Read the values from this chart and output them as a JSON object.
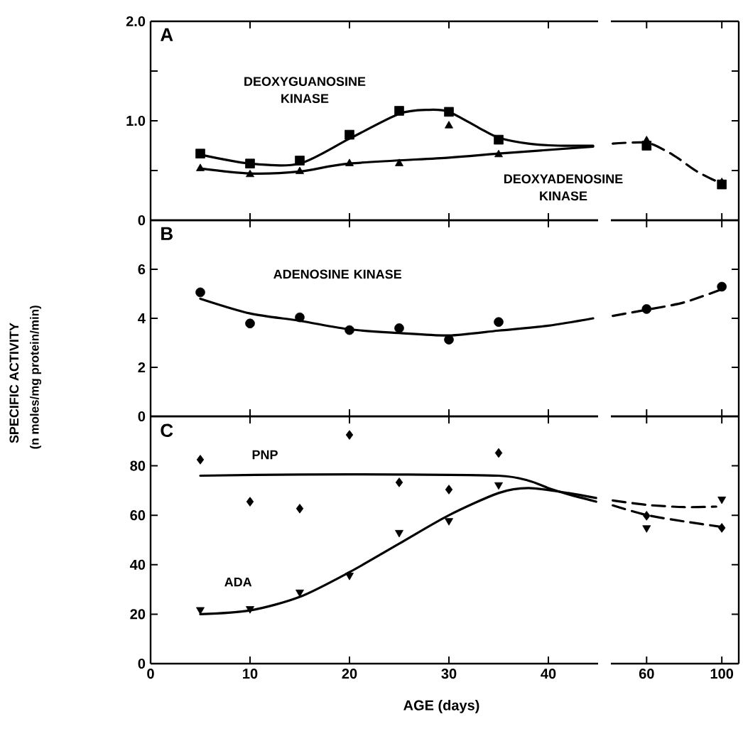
{
  "chart_data": [
    {
      "type": "scatter",
      "annotations": [
        "A"
      ],
      "x": [
        5,
        10,
        15,
        20,
        25,
        30,
        35
      ],
      "xlim": [
        0,
        45
      ],
      "xticks": [
        0,
        10,
        20,
        30,
        40
      ],
      "ylim": [
        0,
        2
      ],
      "yticks": [
        {
          "value": 0,
          "label": "0"
        },
        {
          "value": 0.5,
          "label": null
        },
        {
          "value": 1,
          "label": "1.0"
        },
        {
          "value": 1.5,
          "label": null
        },
        {
          "value": 2,
          "label": "2.0"
        }
      ],
      "tick_labels": "y",
      "series": [
        {
          "name": "DEOXYGUANOSINE KINASE",
          "color": "#000000",
          "marker": "square",
          "values": [
            0.67,
            0.57,
            0.6,
            0.86,
            1.1,
            1.09,
            0.81
          ]
        },
        {
          "name": "DEOXYADENOSINE KINASE",
          "color": "#000000",
          "marker": "triangle",
          "values": [
            0.52,
            0.46,
            0.49,
            0.57,
            0.57,
            0.95,
            0.66
          ]
        },
        {
          "type": "line",
          "color": "#000000",
          "line_style": "solid",
          "x": [
            5,
            10,
            15,
            20,
            25,
            28,
            30,
            33,
            35,
            38,
            41,
            44.5
          ],
          "values": [
            0.66,
            0.57,
            0.57,
            0.82,
            1.07,
            1.11,
            1.09,
            0.93,
            0.83,
            0.77,
            0.75,
            0.75
          ]
        },
        {
          "type": "line",
          "color": "#000000",
          "line_style": "solid",
          "x": [
            5,
            10,
            15,
            20,
            30,
            35,
            44.5
          ],
          "values": [
            0.52,
            0.47,
            0.49,
            0.57,
            0.63,
            0.67,
            0.74
          ]
        }
      ]
    },
    {
      "type": "scatter",
      "x": [
        60,
        100
      ],
      "xlim": [
        41,
        109
      ],
      "xticks": [
        60,
        100
      ],
      "ylim": [
        0,
        2
      ],
      "yticks": [
        0,
        0.5,
        1,
        1.5,
        2
      ],
      "tick_labels": false,
      "series": [
        {
          "color": "#000000",
          "marker": "square",
          "values": [
            0.75,
            0.36
          ]
        },
        {
          "color": "#000000",
          "marker": "triangle",
          "values": [
            0.8,
            0.38
          ]
        },
        {
          "type": "line",
          "color": "#000000",
          "line_style": "dashed",
          "x": [
            42,
            60,
            71,
            77,
            86,
            94,
            100
          ],
          "values": [
            0.77,
            0.78,
            0.69,
            0.62,
            0.5,
            0.42,
            0.37
          ]
        }
      ]
    },
    {
      "type": "scatter",
      "annotations": [
        "B",
        "(n moles/mg protein/min)"
      ],
      "ylabel": "SPECIFIC ACTIVITY",
      "x": [
        5,
        10,
        15,
        20,
        25,
        30,
        35
      ],
      "xlim": [
        0,
        45
      ],
      "xticks": [
        0,
        10,
        20,
        30,
        40
      ],
      "ylim": [
        0,
        8
      ],
      "yticks": [
        0,
        2,
        4,
        6
      ],
      "tick_labels": "y",
      "series": [
        {
          "name": "ADENOSINE KINASE",
          "color": "#000000",
          "marker": "circle",
          "values": [
            5.06,
            3.79,
            4.04,
            3.52,
            3.6,
            3.13,
            3.85
          ]
        },
        {
          "type": "line",
          "color": "#000000",
          "line_style": "solid",
          "x": [
            5,
            10,
            15,
            20,
            25,
            30,
            35,
            40,
            44.5
          ],
          "values": [
            4.8,
            4.2,
            3.9,
            3.55,
            3.4,
            3.3,
            3.5,
            3.7,
            4.0
          ]
        }
      ]
    },
    {
      "type": "scatter",
      "x": [
        60,
        100
      ],
      "xlim": [
        41,
        109
      ],
      "xticks": [
        60,
        100
      ],
      "ylim": [
        0,
        8
      ],
      "yticks": [
        0,
        2,
        4,
        6
      ],
      "tick_labels": false,
      "series": [
        {
          "color": "#000000",
          "marker": "circle",
          "values": [
            4.38,
            5.29
          ]
        },
        {
          "type": "line",
          "color": "#000000",
          "line_style": "dashed",
          "x": [
            42,
            60,
            80,
            100
          ],
          "values": [
            4.1,
            4.35,
            4.65,
            5.19
          ]
        }
      ]
    },
    {
      "type": "scatter",
      "annotations": [
        "C"
      ],
      "xlabel": "AGE (days)",
      "x": [
        5,
        10,
        15,
        20,
        25,
        30,
        35
      ],
      "xlim": [
        0,
        45
      ],
      "xticks": [
        0,
        10,
        20,
        30,
        40
      ],
      "ylim": [
        0,
        100
      ],
      "yticks": [
        0,
        20,
        40,
        60,
        80
      ],
      "series": [
        {
          "name": "PNP",
          "color": "#000000",
          "marker": "diamond",
          "values": [
            82.5,
            65.5,
            62.7,
            92.5,
            73.3,
            70.4,
            85.2
          ]
        },
        {
          "name": "ADA",
          "color": "#000000",
          "marker": "triangle down",
          "values": [
            21.8,
            22.2,
            28.9,
            35.7,
            53,
            57.8,
            72.3
          ]
        },
        {
          "type": "line",
          "color": "#000000",
          "line_style": "solid",
          "x": [
            5,
            15,
            25,
            35,
            38,
            40,
            42,
            44.8
          ],
          "values": [
            76,
            76.5,
            76.5,
            76,
            74,
            71,
            68.5,
            65.5
          ]
        },
        {
          "type": "line",
          "color": "#000000",
          "line_style": "solid",
          "x": [
            5,
            10,
            15,
            20,
            25,
            30,
            35,
            38,
            42,
            44.8
          ],
          "values": [
            20,
            21.5,
            27,
            37,
            48.5,
            60,
            69,
            71,
            69,
            67
          ]
        }
      ]
    },
    {
      "type": "scatter",
      "x": [
        60,
        100
      ],
      "xlim": [
        41,
        109
      ],
      "xticks": [
        60,
        100
      ],
      "ylim": [
        0,
        100
      ],
      "yticks": [
        0,
        20,
        40,
        60,
        80
      ],
      "tick_labels": "x",
      "series": [
        {
          "color": "#000000",
          "marker": "diamond",
          "values": [
            59.8,
            54.9
          ]
        },
        {
          "color": "#000000",
          "marker": "triangle down",
          "values": [
            54.9,
            66.5
          ]
        },
        {
          "type": "line",
          "color": "#000000",
          "line_style": "dashed",
          "x": [
            42,
            60,
            80,
            100
          ],
          "values": [
            64,
            60.1,
            57.5,
            55.3
          ]
        },
        {
          "type": "line",
          "color": "#000000",
          "line_style": "dashed",
          "x": [
            42,
            60,
            80,
            97
          ],
          "values": [
            66,
            64.2,
            63.3,
            63.5
          ]
        }
      ]
    }
  ]
}
